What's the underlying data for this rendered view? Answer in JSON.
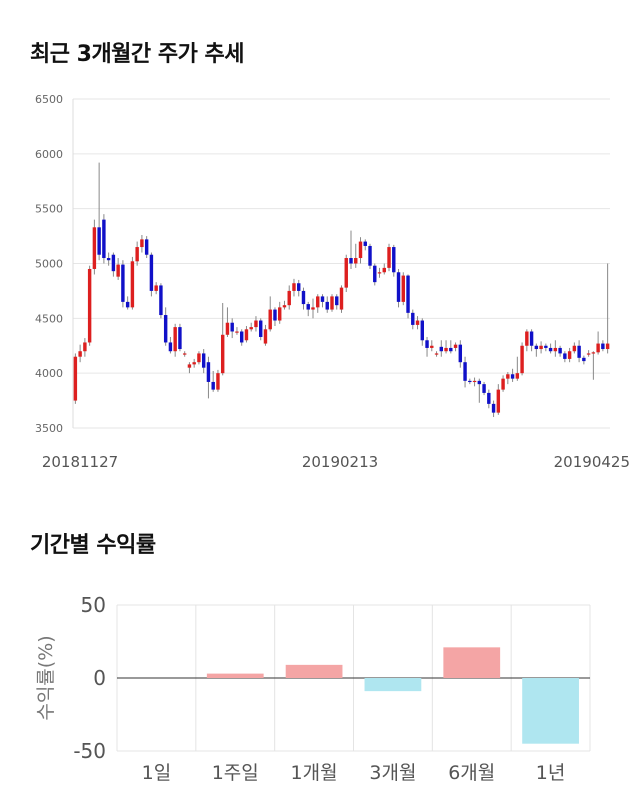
{
  "sections": {
    "price_title": "최근 3개월간 주가 추세",
    "return_title": "기간별 수익률"
  },
  "chart_data": [
    {
      "type": "candlestick",
      "title": "최근 3개월간 주가 추세",
      "ylim": [
        3500,
        6500
      ],
      "y_ticks": [
        6500,
        6000,
        5500,
        5000,
        4500,
        4000,
        3500
      ],
      "x_tick_labels": [
        "20181127",
        "20190213",
        "20190425"
      ],
      "grid": true,
      "colors": {
        "up": "#dd1f1f",
        "down": "#1010c8",
        "wick": "#888888"
      },
      "candles": [
        [
          3750,
          4150,
          3720,
          4180
        ],
        [
          4150,
          4200,
          4100,
          4260
        ],
        [
          4200,
          4280,
          4150,
          4320
        ],
        [
          4280,
          4950,
          4250,
          4980
        ],
        [
          4950,
          5330,
          4900,
          5400
        ],
        [
          5330,
          5080,
          5030,
          5920
        ],
        [
          5400,
          5050,
          5000,
          5450
        ],
        [
          5050,
          5030,
          4980,
          5100
        ],
        [
          5080,
          4930,
          4880,
          5100
        ],
        [
          4880,
          4990,
          4850,
          5050
        ],
        [
          4990,
          4650,
          4600,
          5030
        ],
        [
          4650,
          4600,
          4580,
          4700
        ],
        [
          4600,
          5020,
          4580,
          5060
        ],
        [
          5020,
          5150,
          4980,
          5200
        ],
        [
          5150,
          5220,
          5100,
          5260
        ],
        [
          5220,
          5080,
          5050,
          5250
        ],
        [
          5080,
          4750,
          4700,
          5100
        ],
        [
          4750,
          4800,
          4720,
          4830
        ],
        [
          4800,
          4530,
          4500,
          4820
        ],
        [
          4530,
          4280,
          4250,
          4600
        ],
        [
          4280,
          4200,
          4180,
          4330
        ],
        [
          4200,
          4420,
          4150,
          4450
        ],
        [
          4420,
          4220,
          4200,
          4450
        ],
        [
          4180,
          4180,
          4150,
          4200
        ],
        [
          4050,
          4080,
          4000,
          4100
        ],
        [
          4080,
          4100,
          4050,
          4130
        ],
        [
          4100,
          4180,
          4080,
          4200
        ],
        [
          4180,
          4050,
          4000,
          4220
        ],
        [
          4100,
          3920,
          3770,
          4150
        ],
        [
          3920,
          3850,
          3830,
          4020
        ],
        [
          3850,
          4000,
          3830,
          4030
        ],
        [
          4000,
          4350,
          3980,
          4640
        ],
        [
          4350,
          4460,
          4330,
          4600
        ],
        [
          4460,
          4380,
          4320,
          4500
        ],
        [
          4380,
          4380,
          4350,
          4420
        ],
        [
          4380,
          4280,
          4250,
          4400
        ],
        [
          4300,
          4400,
          4280,
          4430
        ],
        [
          4400,
          4420,
          4380,
          4460
        ],
        [
          4420,
          4480,
          4380,
          4520
        ],
        [
          4480,
          4330,
          4300,
          4500
        ],
        [
          4270,
          4400,
          4250,
          4440
        ],
        [
          4400,
          4580,
          4380,
          4700
        ],
        [
          4580,
          4480,
          4430,
          4600
        ],
        [
          4480,
          4600,
          4450,
          4650
        ],
        [
          4600,
          4620,
          4580,
          4660
        ],
        [
          4620,
          4750,
          4580,
          4800
        ],
        [
          4750,
          4820,
          4700,
          4860
        ],
        [
          4820,
          4750,
          4700,
          4850
        ],
        [
          4750,
          4630,
          4580,
          4780
        ],
        [
          4630,
          4580,
          4520,
          4650
        ],
        [
          4580,
          4600,
          4500,
          4680
        ],
        [
          4600,
          4700,
          4550,
          4720
        ],
        [
          4700,
          4650,
          4600,
          4720
        ],
        [
          4650,
          4580,
          4550,
          4700
        ],
        [
          4580,
          4700,
          4560,
          4720
        ],
        [
          4700,
          4620,
          4580,
          4720
        ],
        [
          4580,
          4780,
          4550,
          4800
        ],
        [
          4780,
          5050,
          4740,
          5080
        ],
        [
          5050,
          5000,
          4950,
          5300
        ],
        [
          5000,
          5050,
          4960,
          5180
        ],
        [
          5050,
          5200,
          5000,
          5240
        ],
        [
          5200,
          5160,
          5120,
          5220
        ],
        [
          5160,
          4980,
          4950,
          5180
        ],
        [
          4980,
          4830,
          4800,
          5000
        ],
        [
          4920,
          4920,
          4870,
          4960
        ],
        [
          4920,
          4960,
          4900,
          5000
        ],
        [
          4960,
          5150,
          4930,
          5180
        ],
        [
          5150,
          4920,
          4880,
          5170
        ],
        [
          4920,
          4650,
          4600,
          4950
        ],
        [
          4650,
          4890,
          4620,
          4920
        ],
        [
          4890,
          4550,
          4500,
          4900
        ],
        [
          4550,
          4440,
          4400,
          4580
        ],
        [
          4440,
          4480,
          4400,
          4520
        ],
        [
          4480,
          4300,
          4250,
          4500
        ],
        [
          4300,
          4230,
          4150,
          4330
        ],
        [
          4230,
          4250,
          4200,
          4300
        ],
        [
          4180,
          4180,
          4150,
          4200
        ],
        [
          4240,
          4200,
          4150,
          4300
        ],
        [
          4200,
          4230,
          4180,
          4300
        ],
        [
          4230,
          4200,
          4180,
          4300
        ],
        [
          4230,
          4260,
          4200,
          4280
        ],
        [
          4260,
          4100,
          4050,
          4300
        ],
        [
          4100,
          3930,
          3870,
          4150
        ],
        [
          3930,
          3920,
          3900,
          3950
        ],
        [
          3920,
          3930,
          3880,
          3960
        ],
        [
          3930,
          3900,
          3730,
          3950
        ],
        [
          3900,
          3820,
          3800,
          3920
        ],
        [
          3820,
          3720,
          3680,
          3850
        ],
        [
          3720,
          3640,
          3600,
          3750
        ],
        [
          3640,
          3850,
          3620,
          3900
        ],
        [
          3850,
          3950,
          3830,
          3980
        ],
        [
          3950,
          3990,
          3900,
          4010
        ],
        [
          3990,
          3950,
          3920,
          4040
        ],
        [
          3950,
          4000,
          3930,
          4150
        ],
        [
          4000,
          4250,
          3980,
          4280
        ],
        [
          4250,
          4380,
          4200,
          4400
        ],
        [
          4380,
          4250,
          4200,
          4400
        ],
        [
          4250,
          4220,
          4150,
          4270
        ],
        [
          4220,
          4250,
          4180,
          4290
        ],
        [
          4250,
          4230,
          4200,
          4270
        ],
        [
          4230,
          4200,
          4180,
          4270
        ],
        [
          4200,
          4230,
          4150,
          4300
        ],
        [
          4230,
          4180,
          4150,
          4250
        ],
        [
          4180,
          4130,
          4100,
          4200
        ],
        [
          4130,
          4200,
          4100,
          4230
        ],
        [
          4200,
          4250,
          4180,
          4280
        ],
        [
          4250,
          4140,
          4100,
          4300
        ],
        [
          4140,
          4110,
          4080,
          4160
        ],
        [
          4180,
          4180,
          4150,
          4210
        ],
        [
          4180,
          4190,
          3940,
          4200
        ],
        [
          4190,
          4270,
          4170,
          4380
        ],
        [
          4270,
          4220,
          4200,
          4300
        ],
        [
          4220,
          4270,
          4180,
          5000
        ]
      ]
    },
    {
      "type": "bar",
      "title": "기간별 수익률",
      "ylabel": "수익률(%)",
      "ylim": [
        -50,
        50
      ],
      "y_ticks": [
        50,
        0,
        -50
      ],
      "categories": [
        "1일",
        "1주일",
        "1개월",
        "3개월",
        "6개월",
        "1년"
      ],
      "values": [
        0,
        3,
        9,
        -9,
        21,
        -45
      ],
      "colors": {
        "positive": "#f4a5a5",
        "negative": "#afe6f0",
        "grid": "#e4e4e4"
      }
    }
  ]
}
